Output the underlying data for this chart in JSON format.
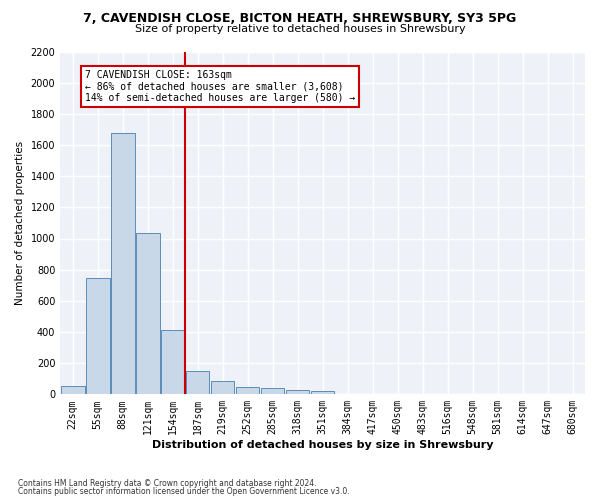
{
  "title_line1": "7, CAVENDISH CLOSE, BICTON HEATH, SHREWSBURY, SY3 5PG",
  "title_line2": "Size of property relative to detached houses in Shrewsbury",
  "xlabel": "Distribution of detached houses by size in Shrewsbury",
  "ylabel": "Number of detached properties",
  "footer_line1": "Contains HM Land Registry data © Crown copyright and database right 2024.",
  "footer_line2": "Contains public sector information licensed under the Open Government Licence v3.0.",
  "bar_labels": [
    "22sqm",
    "55sqm",
    "88sqm",
    "121sqm",
    "154sqm",
    "187sqm",
    "219sqm",
    "252sqm",
    "285sqm",
    "318sqm",
    "351sqm",
    "384sqm",
    "417sqm",
    "450sqm",
    "483sqm",
    "516sqm",
    "548sqm",
    "581sqm",
    "614sqm",
    "647sqm",
    "680sqm"
  ],
  "bar_values": [
    55,
    745,
    1680,
    1035,
    410,
    150,
    85,
    48,
    40,
    28,
    20,
    0,
    0,
    0,
    0,
    0,
    0,
    0,
    0,
    0,
    0
  ],
  "bar_color": "#c8d8e8",
  "bar_edgecolor": "#5b8db8",
  "background_color": "#eef2f8",
  "fig_background_color": "#ffffff",
  "grid_color": "#ffffff",
  "vline_x": 4.5,
  "vline_color": "#cc0000",
  "annotation_text": "7 CAVENDISH CLOSE: 163sqm\n← 86% of detached houses are smaller (3,608)\n14% of semi-detached houses are larger (580) →",
  "annotation_box_color": "#ffffff",
  "annotation_box_edgecolor": "#cc0000",
  "ylim": [
    0,
    2200
  ],
  "yticks": [
    0,
    200,
    400,
    600,
    800,
    1000,
    1200,
    1400,
    1600,
    1800,
    2000,
    2200
  ]
}
